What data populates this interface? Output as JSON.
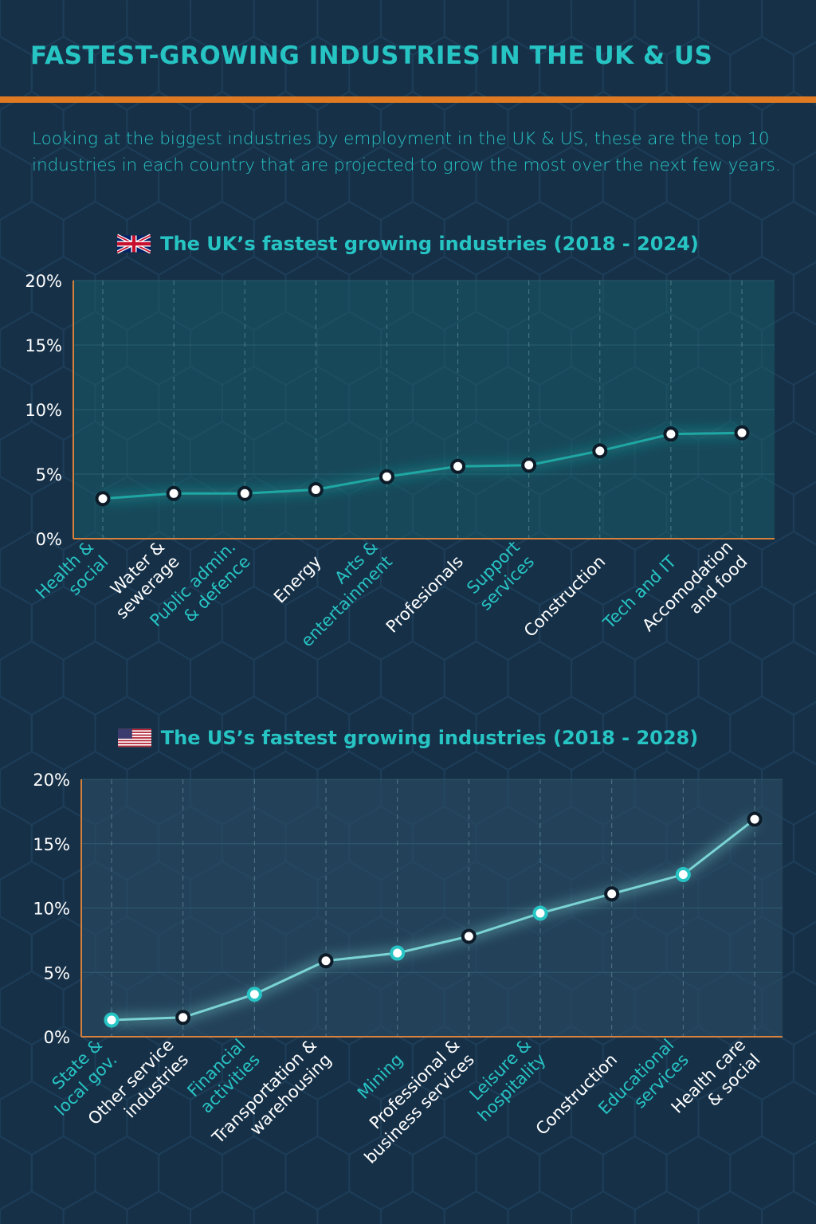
{
  "title": "FASTEST-GROWING INDUSTRIES IN THE UK & US",
  "intro": "Looking at the biggest industries by employment in the UK & US, these are the top 10 industries in each country that are projected to grow the most over the next few years.",
  "colors": {
    "background": "#163047",
    "accent": "#27c4c4",
    "rule": "#e07a22",
    "line_uk": "#1fa7a4",
    "line_us": "#7ad3d4"
  },
  "chart_data": [
    {
      "type": "line",
      "flag": "uk-flag-icon",
      "title": "The UK’s fastest growing industries (2018 - 2024)",
      "yticks": [
        "20%",
        "15%",
        "10%",
        "5%",
        "0%"
      ],
      "ylim": [
        0,
        20
      ],
      "grid": true,
      "categories": [
        [
          "Health &",
          "social"
        ],
        [
          "Water &",
          "sewerage"
        ],
        [
          "Public admin.",
          "& defence"
        ],
        [
          "Energy"
        ],
        [
          "Arts &",
          "entertainment"
        ],
        [
          "Profesionals"
        ],
        [
          "Support",
          "services"
        ],
        [
          "Construction"
        ],
        [
          "Tech and IT"
        ],
        [
          "Accomodation",
          "and food"
        ]
      ],
      "values": [
        3.1,
        3.5,
        3.5,
        3.8,
        4.8,
        5.6,
        5.7,
        6.8,
        8.1,
        8.2
      ]
    },
    {
      "type": "line",
      "flag": "us-flag-icon",
      "title": "The US’s fastest growing industries (2018 - 2028)",
      "yticks": [
        "20%",
        "15%",
        "10%",
        "5%",
        "0%"
      ],
      "ylim": [
        0,
        20
      ],
      "grid": true,
      "categories": [
        [
          "State &",
          "local gov."
        ],
        [
          "Other service",
          "industries"
        ],
        [
          "Financial",
          "activities"
        ],
        [
          "Transportation &",
          "warehousing"
        ],
        [
          "Mining"
        ],
        [
          "Professional &",
          "business services"
        ],
        [
          "Leisure &",
          "hospitality"
        ],
        [
          "Construction"
        ],
        [
          "Educational",
          "services"
        ],
        [
          "Health care",
          "& social"
        ]
      ],
      "values": [
        1.3,
        1.5,
        3.3,
        5.9,
        6.5,
        7.8,
        9.6,
        11.1,
        12.6,
        16.9
      ]
    }
  ]
}
